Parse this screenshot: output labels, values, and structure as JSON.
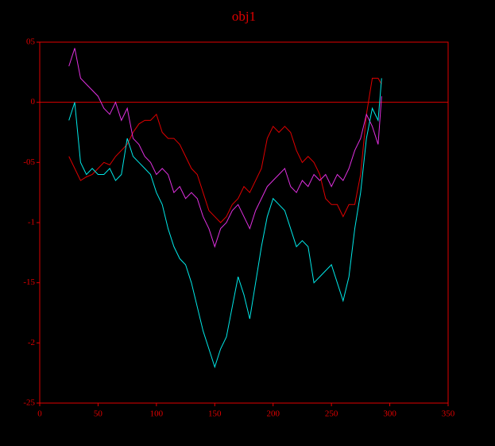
{
  "chart_data": {
    "type": "line",
    "title": "obj1",
    "x": [
      25,
      30,
      35,
      40,
      45,
      50,
      55,
      60,
      65,
      70,
      75,
      80,
      85,
      90,
      95,
      100,
      105,
      110,
      115,
      120,
      125,
      130,
      135,
      140,
      145,
      150,
      155,
      160,
      165,
      170,
      175,
      180,
      185,
      190,
      195,
      200,
      205,
      210,
      215,
      220,
      225,
      230,
      235,
      240,
      245,
      250,
      255,
      260,
      265,
      270,
      275,
      280,
      285,
      290,
      293
    ],
    "series": [
      {
        "color": "#e00000",
        "values": [
          -0.45,
          -0.55,
          -0.65,
          -0.62,
          -0.6,
          -0.55,
          -0.5,
          -0.52,
          -0.45,
          -0.4,
          -0.35,
          -0.25,
          -0.18,
          -0.15,
          -0.15,
          -0.1,
          -0.25,
          -0.3,
          -0.3,
          -0.35,
          -0.45,
          -0.55,
          -0.6,
          -0.75,
          -0.9,
          -0.95,
          -1.0,
          -0.95,
          -0.85,
          -0.8,
          -0.7,
          -0.75,
          -0.65,
          -0.55,
          -0.3,
          -0.2,
          -0.25,
          -0.2,
          -0.25,
          -0.4,
          -0.5,
          -0.45,
          -0.5,
          -0.6,
          -0.8,
          -0.85,
          -0.85,
          -0.95,
          -0.85,
          -0.85,
          -0.6,
          -0.1,
          0.2,
          0.2,
          0.15
        ]
      },
      {
        "color": "#e030e0",
        "values": [
          0.3,
          0.45,
          0.2,
          0.15,
          0.1,
          0.05,
          -0.05,
          -0.1,
          0.0,
          -0.15,
          -0.05,
          -0.3,
          -0.35,
          -0.45,
          -0.5,
          -0.6,
          -0.55,
          -0.6,
          -0.75,
          -0.7,
          -0.8,
          -0.75,
          -0.8,
          -0.95,
          -1.05,
          -1.2,
          -1.05,
          -1.0,
          -0.9,
          -0.85,
          -0.95,
          -1.05,
          -0.9,
          -0.8,
          -0.7,
          -0.65,
          -0.6,
          -0.55,
          -0.7,
          -0.75,
          -0.65,
          -0.7,
          -0.6,
          -0.65,
          -0.6,
          -0.7,
          -0.6,
          -0.65,
          -0.55,
          -0.4,
          -0.3,
          -0.1,
          -0.2,
          -0.35,
          0.05
        ]
      },
      {
        "color": "#00e8e8",
        "values": [
          -0.15,
          0.0,
          -0.5,
          -0.6,
          -0.55,
          -0.6,
          -0.6,
          -0.55,
          -0.65,
          -0.6,
          -0.3,
          -0.45,
          -0.5,
          -0.55,
          -0.6,
          -0.75,
          -0.85,
          -1.05,
          -1.2,
          -1.3,
          -1.35,
          -1.5,
          -1.7,
          -1.9,
          -2.05,
          -2.2,
          -2.05,
          -1.95,
          -1.7,
          -1.45,
          -1.6,
          -1.8,
          -1.5,
          -1.2,
          -0.95,
          -0.8,
          -0.85,
          -0.9,
          -1.05,
          -1.2,
          -1.15,
          -1.2,
          -1.5,
          -1.45,
          -1.4,
          -1.35,
          -1.5,
          -1.65,
          -1.45,
          -1.05,
          -0.75,
          -0.3,
          -0.05,
          -0.15,
          0.2
        ]
      }
    ],
    "xlim": [
      0,
      350
    ],
    "xticks": [
      0,
      50,
      100,
      150,
      200,
      250,
      300,
      350
    ],
    "ylim": [
      -2.5,
      0.5
    ],
    "yticks": [
      {
        "value": 0.5,
        "label": "05"
      },
      0,
      {
        "value": -0.5,
        "label": "-05"
      },
      -1,
      {
        "value": -1.5,
        "label": "-15"
      },
      -2,
      {
        "value": -2.5,
        "label": "-25"
      }
    ],
    "reference_line": 0,
    "axis_color": "#e00000"
  }
}
